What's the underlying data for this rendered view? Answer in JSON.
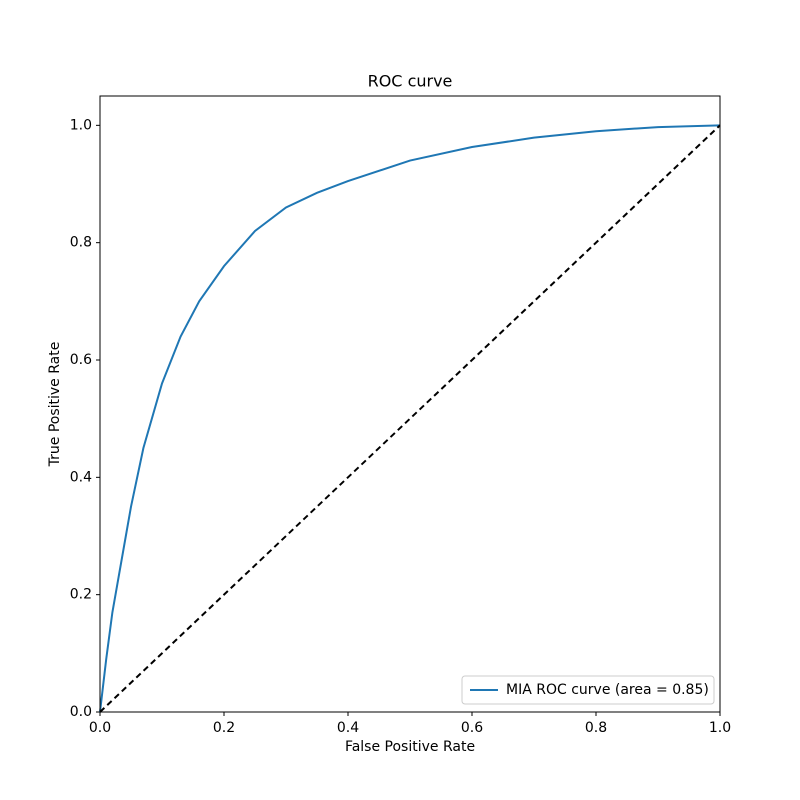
{
  "chart_data": {
    "type": "line",
    "title": "ROC curve",
    "x_label": "False Positive Rate",
    "y_label": "True Positive Rate",
    "xlim": [
      0,
      1
    ],
    "ylim": [
      0,
      1.05
    ],
    "xticks": [
      {
        "value": 0,
        "label": "0.0"
      },
      0.2,
      0.4,
      0.6,
      0.8,
      {
        "value": 1,
        "label": "1.0"
      }
    ],
    "yticks": [
      {
        "value": 0,
        "label": "0.0"
      },
      0.2,
      0.4,
      0.6,
      0.8,
      {
        "value": 1,
        "label": "1.0"
      }
    ],
    "legend": "lower right",
    "series": [
      {
        "name": "MIA ROC curve (area = 0.85)",
        "color": "#1f77b4",
        "dash": false,
        "x": [
          0,
          0.01,
          0.02,
          0.03,
          0.05,
          0.07,
          0.1,
          0.13,
          0.16,
          0.2,
          0.25,
          0.3,
          0.35,
          0.4,
          0.5,
          0.6,
          0.7,
          0.8,
          0.9,
          1.0
        ],
        "values": [
          0,
          0.09,
          0.17,
          0.23,
          0.35,
          0.45,
          0.56,
          0.64,
          0.7,
          0.76,
          0.82,
          0.86,
          0.885,
          0.905,
          0.94,
          0.963,
          0.979,
          0.99,
          0.997,
          1.0
        ]
      },
      {
        "color": "#000000",
        "dash": true,
        "x": [
          0,
          1
        ],
        "values": [
          0,
          1
        ]
      }
    ]
  }
}
